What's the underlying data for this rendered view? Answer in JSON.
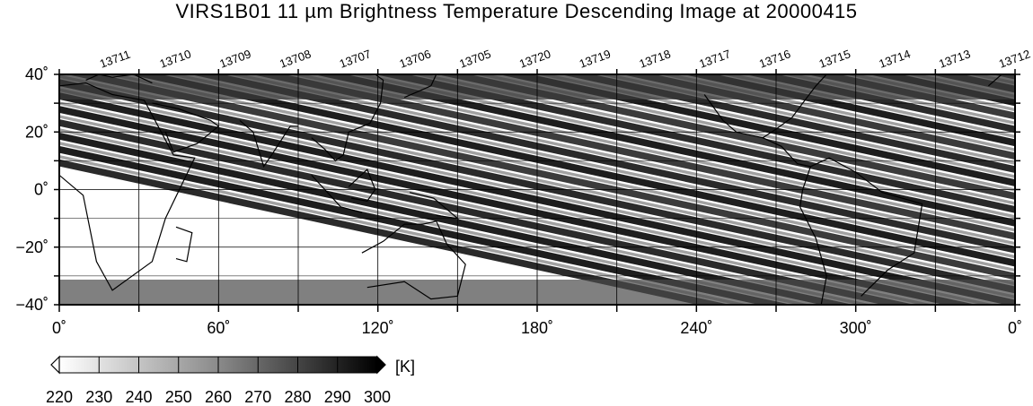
{
  "title": "VIRS1B01 11 µm Brightness Temperature Descending Image at 20000415",
  "orbits": [
    "13711",
    "13710",
    "13709",
    "13708",
    "13707",
    "13706",
    "13705",
    "13720",
    "13719",
    "13718",
    "13717",
    "13716",
    "13715",
    "13714",
    "13713",
    "13712"
  ],
  "lon_labels": [
    "0˚",
    "60˚",
    "120˚",
    "180˚",
    "240˚",
    "300˚",
    "0˚"
  ],
  "lat_labels": [
    "40˚",
    "20˚",
    "0˚",
    "−20˚",
    "−40˚"
  ],
  "colorbar": {
    "ticks": [
      "220",
      "230",
      "240",
      "250",
      "260",
      "270",
      "280",
      "290",
      "300"
    ],
    "unit": "[K]",
    "min": 220,
    "max": 300
  },
  "map": {
    "lon_range": [
      0,
      360
    ],
    "lat_range": [
      -40,
      40
    ],
    "grid_lon_step": 30,
    "grid_lat_step": 20,
    "swath_count": 16
  }
}
